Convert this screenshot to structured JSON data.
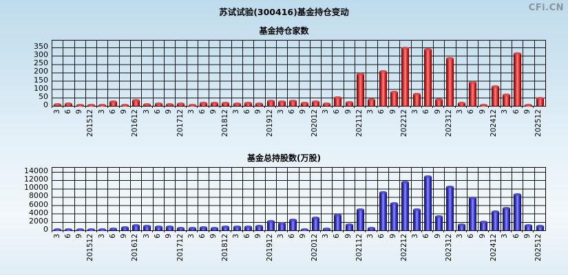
{
  "page": {
    "title": "苏试试验(300416)基金持仓变动",
    "watermark": "CFi.CN"
  },
  "x_tick_labels": [
    "3",
    "6",
    "9",
    "201512",
    "3",
    "6",
    "9",
    "201612",
    "3",
    "6",
    "9",
    "201712",
    "3",
    "6",
    "9",
    "201812",
    "3",
    "6",
    "9",
    "201912",
    "3",
    "6",
    "9",
    "202012",
    "3",
    "6",
    "9",
    "202112",
    "3",
    "6",
    "9",
    "202212",
    "3",
    "6",
    "9",
    "202312",
    "3",
    "6",
    "9",
    "202412",
    "3",
    "6",
    "9",
    "202512"
  ],
  "chart_data": [
    {
      "type": "bar",
      "title": "基金持仓家数",
      "ylabel": "",
      "xlabel": "",
      "ylim": [
        0,
        350
      ],
      "yticks": [
        0,
        50,
        100,
        150,
        200,
        250,
        300,
        350
      ],
      "grid": true,
      "legend_position": "none",
      "categories": [
        "2015-3",
        "2015-6",
        "2015-9",
        "2015-12",
        "2016-3",
        "2016-6",
        "2016-9",
        "2016-12",
        "2017-3",
        "2017-6",
        "2017-9",
        "2017-12",
        "2018-3",
        "2018-6",
        "2018-9",
        "2018-12",
        "2019-3",
        "2019-6",
        "2019-9",
        "2019-12",
        "2020-3",
        "2020-6",
        "2020-9",
        "2020-12",
        "2021-3",
        "2021-6",
        "2021-9",
        "2021-12",
        "2022-3",
        "2022-6",
        "2022-9",
        "2022-12",
        "2023-3",
        "2023-6",
        "2023-9",
        "2023-12",
        "2024-3",
        "2024-6",
        "2024-9",
        "2024-12",
        "2025-3",
        "2025-6",
        "2025-9",
        "2025-12"
      ],
      "values": [
        8,
        14,
        4,
        3,
        4,
        25,
        6,
        35,
        8,
        12,
        8,
        14,
        6,
        18,
        15,
        16,
        14,
        16,
        14,
        28,
        26,
        28,
        15,
        25,
        12,
        48,
        20,
        190,
        36,
        207,
        82,
        344,
        70,
        338,
        38,
        283,
        18,
        140,
        4,
        114,
        64,
        312,
        3,
        46
      ],
      "bar_colors": {
        "dark": "#600000",
        "mid": "#d43030",
        "light": "#ff8282",
        "cap": "#f05050"
      }
    },
    {
      "type": "bar",
      "title": "基金总持股数(万股)",
      "ylabel": "",
      "xlabel": "",
      "ylim": [
        0,
        14000
      ],
      "yticks": [
        0,
        2000,
        4000,
        6000,
        8000,
        10000,
        12000,
        14000
      ],
      "grid": true,
      "legend_position": "none",
      "categories": [
        "2015-3",
        "2015-6",
        "2015-9",
        "2015-12",
        "2016-3",
        "2016-6",
        "2016-9",
        "2016-12",
        "2017-3",
        "2017-6",
        "2017-9",
        "2017-12",
        "2018-3",
        "2018-6",
        "2018-9",
        "2018-12",
        "2019-3",
        "2019-6",
        "2019-9",
        "2019-12",
        "2020-3",
        "2020-6",
        "2020-9",
        "2020-12",
        "2021-3",
        "2021-6",
        "2021-9",
        "2021-12",
        "2022-3",
        "2022-6",
        "2022-9",
        "2022-12",
        "2023-3",
        "2023-6",
        "2023-9",
        "2023-12",
        "2024-3",
        "2024-6",
        "2024-9",
        "2024-12",
        "2025-3",
        "2025-6",
        "2025-9",
        "2025-12"
      ],
      "values": [
        150,
        200,
        150,
        100,
        150,
        300,
        600,
        1200,
        950,
        800,
        800,
        550,
        500,
        600,
        500,
        800,
        850,
        800,
        1000,
        2100,
        1600,
        2500,
        200,
        3000,
        300,
        3700,
        1300,
        5000,
        500,
        9000,
        6500,
        11600,
        4900,
        12900,
        3300,
        10400,
        1250,
        7800,
        1900,
        4500,
        5300,
        8500,
        1100,
        950
      ],
      "bar_colors": {
        "dark": "#10104e",
        "mid": "#3434c4",
        "light": "#9090ff",
        "cap": "#5858e8"
      }
    }
  ],
  "layout": {
    "gridline_color": "#111111",
    "background_top": "#bedbec",
    "background_bottom": "#e0edf5"
  }
}
